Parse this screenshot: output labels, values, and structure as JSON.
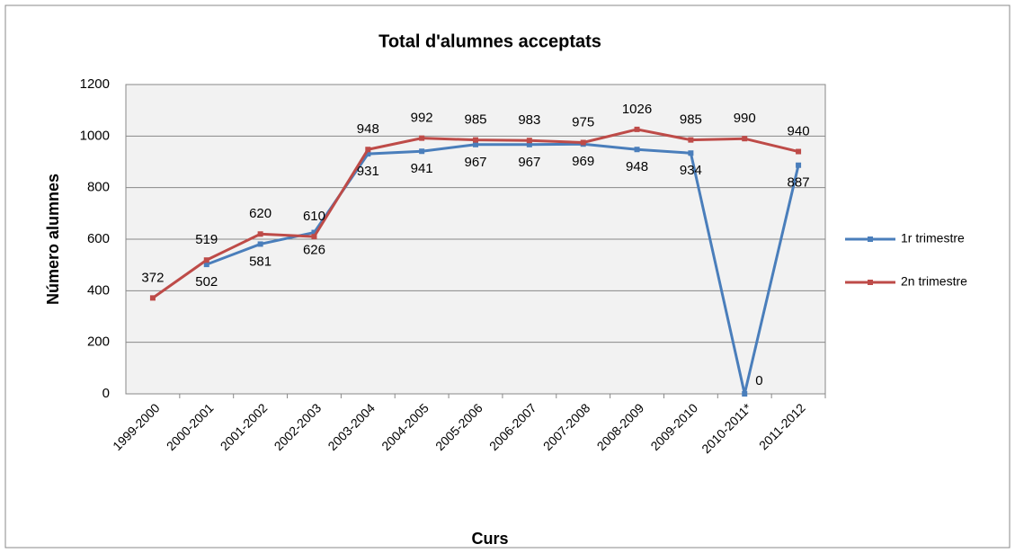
{
  "chart_data": {
    "type": "line",
    "title": "Total d'alumnes acceptats",
    "x_label": "Curs",
    "y_label": "Número alumnes",
    "categories": [
      "1999-2000",
      "2000-2001",
      "2001-2002",
      "2002-2003",
      "2003-2004",
      "2004-2005",
      "2005-2006",
      "2006-2007",
      "2007-2008",
      "2008-2009",
      "2009-2010",
      "2010-2011*",
      "2011-2012"
    ],
    "series": [
      {
        "name": "1r trimestre",
        "color": "#4a7ebb",
        "values": [
          null,
          502,
          581,
          626,
          931,
          941,
          967,
          967,
          969,
          948,
          934,
          0,
          887
        ]
      },
      {
        "name": "2n trimestre",
        "color": "#be4b48",
        "values": [
          372,
          519,
          620,
          610,
          948,
          992,
          985,
          983,
          975,
          1026,
          985,
          990,
          940
        ]
      }
    ],
    "ylim": [
      0,
      1200
    ],
    "yticks": [
      0,
      200,
      400,
      600,
      800,
      1000,
      1200
    ],
    "grid": true,
    "legend": "right"
  }
}
